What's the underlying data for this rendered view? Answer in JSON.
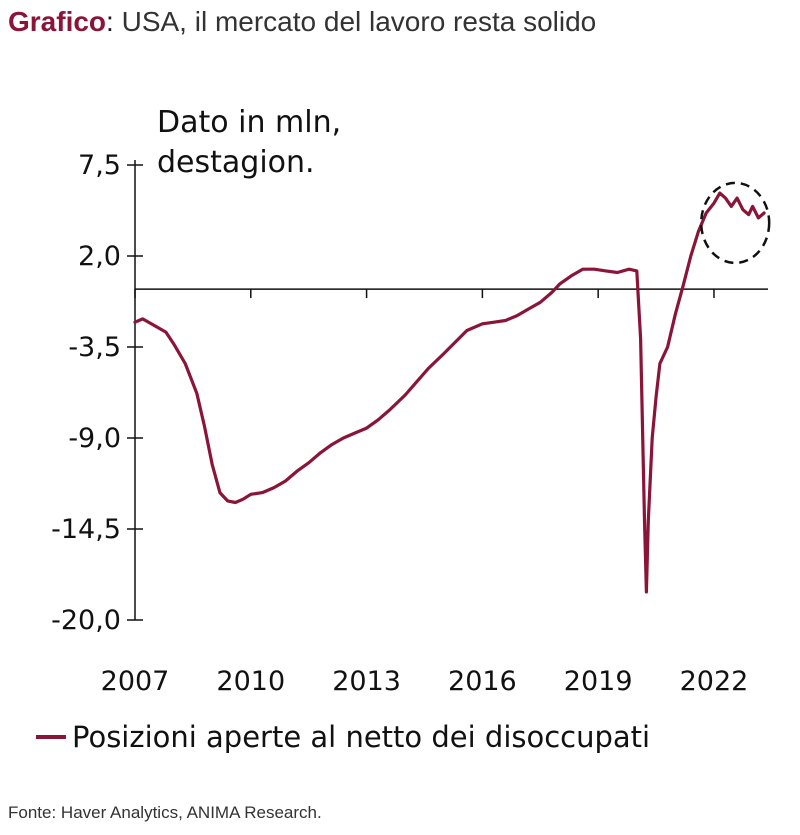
{
  "header": {
    "keyword": "Grafico",
    "separator": ":",
    "title": "USA, il mercato del lavoro resta solido"
  },
  "source": "Fonte: Haver Analytics, ANIMA Research.",
  "colors": {
    "brand": "#8a1538",
    "series": "#8a1538",
    "axis": "#111111"
  },
  "chart_data": {
    "type": "line",
    "ylabel": "Dato in mln,\ndestagion.",
    "xlabel": "",
    "x_ticks": [
      "2007",
      "2010",
      "2013",
      "2016",
      "2019",
      "2022"
    ],
    "y_ticks": [
      "7,5",
      "2,0",
      "-3,5",
      "-9,0",
      "-14,5",
      "-20,0"
    ],
    "y_tick_values": [
      7.5,
      2.0,
      -3.5,
      -9.0,
      -14.5,
      -20.0
    ],
    "xlim": [
      2007.0,
      2023.4
    ],
    "ylim": [
      -20.0,
      7.5
    ],
    "zero_line": 0,
    "grid": false,
    "legend_position": "bottom",
    "annotations": [
      {
        "type": "dashed-circle",
        "around": "2022-2023 peak"
      }
    ],
    "series": [
      {
        "name": "Posizioni aperte al netto dei disoccupati",
        "x": [
          2007.0,
          2007.2,
          2007.5,
          2007.8,
          2008.0,
          2008.3,
          2008.6,
          2008.8,
          2009.0,
          2009.2,
          2009.4,
          2009.6,
          2009.8,
          2010.0,
          2010.3,
          2010.6,
          2010.9,
          2011.2,
          2011.5,
          2011.8,
          2012.1,
          2012.4,
          2012.7,
          2013.0,
          2013.3,
          2013.6,
          2014.0,
          2014.3,
          2014.6,
          2015.0,
          2015.3,
          2015.6,
          2016.0,
          2016.3,
          2016.6,
          2016.9,
          2017.2,
          2017.5,
          2017.8,
          2018.0,
          2018.3,
          2018.6,
          2018.9,
          2019.2,
          2019.5,
          2019.8,
          2020.0,
          2020.1,
          2020.2,
          2020.25,
          2020.3,
          2020.4,
          2020.5,
          2020.6,
          2020.8,
          2021.0,
          2021.2,
          2021.4,
          2021.6,
          2021.8,
          2022.0,
          2022.15,
          2022.3,
          2022.45,
          2022.6,
          2022.75,
          2022.9,
          2023.0,
          2023.15,
          2023.3
        ],
        "y": [
          -2.0,
          -1.8,
          -2.2,
          -2.6,
          -3.3,
          -4.5,
          -6.3,
          -8.3,
          -10.6,
          -12.3,
          -12.8,
          -12.9,
          -12.7,
          -12.4,
          -12.3,
          -12.0,
          -11.6,
          -11.0,
          -10.5,
          -9.9,
          -9.4,
          -9.0,
          -8.7,
          -8.4,
          -7.9,
          -7.3,
          -6.4,
          -5.6,
          -4.8,
          -3.9,
          -3.2,
          -2.5,
          -2.1,
          -2.0,
          -1.9,
          -1.6,
          -1.2,
          -0.8,
          -0.2,
          0.3,
          0.8,
          1.2,
          1.2,
          1.1,
          1.0,
          1.2,
          1.1,
          -3.0,
          -14.0,
          -18.3,
          -14.0,
          -9.0,
          -6.5,
          -4.5,
          -3.5,
          -1.5,
          0.2,
          2.0,
          3.5,
          4.6,
          5.2,
          5.8,
          5.5,
          5.0,
          5.5,
          4.8,
          4.5,
          5.0,
          4.3,
          4.6
        ]
      }
    ]
  }
}
